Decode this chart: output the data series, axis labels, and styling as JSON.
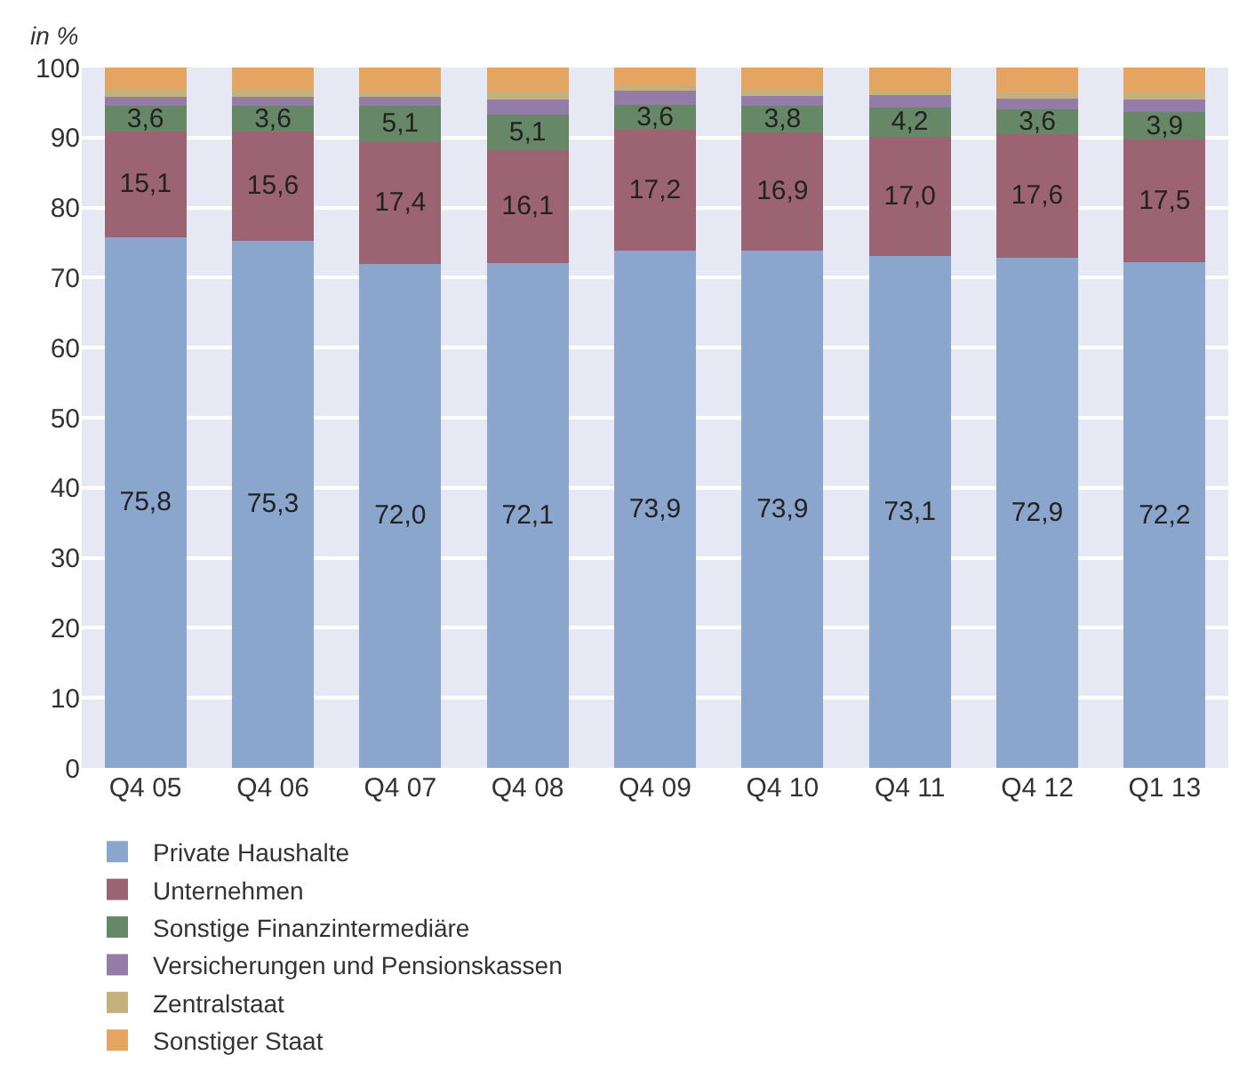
{
  "chart_data": {
    "type": "bar",
    "stacked": true,
    "ylabel": "in %",
    "categories": [
      "Q4 05",
      "Q4 06",
      "Q4 07",
      "Q4 08",
      "Q4 09",
      "Q4 10",
      "Q4 11",
      "Q4 12",
      "Q1 13"
    ],
    "series": [
      {
        "name": "Private Haushalte",
        "color": "#8aa6cc",
        "values": [
          75.8,
          75.3,
          72.0,
          72.1,
          73.9,
          73.9,
          73.1,
          72.9,
          72.2
        ],
        "value_labels": [
          "75,8",
          "75,3",
          "72,0",
          "72,1",
          "73,9",
          "73,9",
          "73,1",
          "72,9",
          "72,2"
        ]
      },
      {
        "name": "Unternehmen",
        "color": "#9c6472",
        "values": [
          15.1,
          15.6,
          17.4,
          16.1,
          17.2,
          16.9,
          17.0,
          17.6,
          17.5
        ],
        "value_labels": [
          "15,1",
          "15,6",
          "17,4",
          "16,1",
          "17,2",
          "16,9",
          "17,0",
          "17,6",
          "17,5"
        ]
      },
      {
        "name": "Sonstige Finanzintermediäre",
        "color": "#668866",
        "values": [
          3.6,
          3.6,
          5.1,
          5.1,
          3.6,
          3.8,
          4.2,
          3.6,
          3.9
        ],
        "value_labels": [
          "3,6",
          "3,6",
          "5,1",
          "5,1",
          "3,6",
          "3,8",
          "4,2",
          "3,6",
          "3,9"
        ]
      },
      {
        "name": "Versicherungen und Pensionskassen",
        "color": "#947ca8",
        "values": [
          1.3,
          1.3,
          1.3,
          2.1,
          2.0,
          1.3,
          1.8,
          1.5,
          1.8
        ]
      },
      {
        "name": "Zentralstaat",
        "color": "#c4b07a",
        "values": [
          1.1,
          1.1,
          0.6,
          1.2,
          0.7,
          1.1,
          0.6,
          0.8,
          1.1
        ]
      },
      {
        "name": "Sonstiger Staat",
        "color": "#e4a462",
        "values": [
          3.1,
          3.1,
          3.6,
          3.4,
          2.6,
          3.0,
          3.3,
          3.6,
          3.5
        ]
      }
    ],
    "ylim": [
      0,
      100
    ],
    "yticks": [
      0,
      10,
      20,
      30,
      40,
      50,
      60,
      70,
      80,
      90,
      100
    ],
    "grid": "y",
    "legend": "bottom"
  }
}
